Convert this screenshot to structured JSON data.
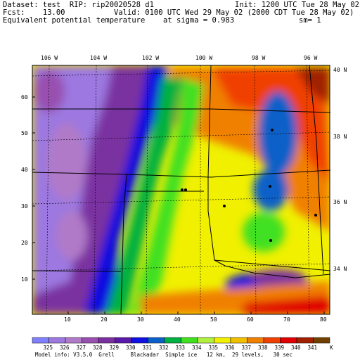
{
  "header": {
    "line1_left": "Dataset: test  RIP: rip20020528 d1",
    "line1_right": "Init: 1200 UTC Tue 28 May 02",
    "line2_left": "Fcst:    13.00",
    "line2_right": "Valid: 0100 UTC Wed 29 May 02 (2000 CDT Tue 28 May 02)",
    "line3_left": "Equivalent potential temperature",
    "line3_mid": "at sigma = 0.983",
    "line3_right": "sm= 1"
  },
  "top_lon_labels": [
    "106 W",
    "104 W",
    "102 W",
    "100 W",
    "98 W",
    "96 W"
  ],
  "right_lat_labels": [
    "40 N",
    "38 N",
    "36 N",
    "34 N"
  ],
  "left_y_ticks": [
    "60",
    "50",
    "40",
    "30",
    "20",
    "10"
  ],
  "bottom_x_ticks": [
    "10",
    "20",
    "30",
    "40",
    "50",
    "60",
    "70",
    "80"
  ],
  "colorbar": {
    "values": [
      "325",
      "326",
      "327",
      "328",
      "329",
      "330",
      "331",
      "332",
      "333",
      "334",
      "335",
      "336",
      "337",
      "338",
      "339",
      "340",
      "341"
    ],
    "unit": "K",
    "colors": [
      "#8080ff",
      "#9c78e0",
      "#b07ac8",
      "#9850b0",
      "#7a30a0",
      "#5a1aa8",
      "#1010e0",
      "#0a60c8",
      "#00b040",
      "#40e020",
      "#b0f040",
      "#f0f000",
      "#f0c000",
      "#f08000",
      "#f04000",
      "#e00000",
      "#a02000",
      "#704000"
    ]
  },
  "footer": "Model info: V3.5.0  Grell     Blackadar  Simple ice   12 km,  29 levels,   30 sec"
}
